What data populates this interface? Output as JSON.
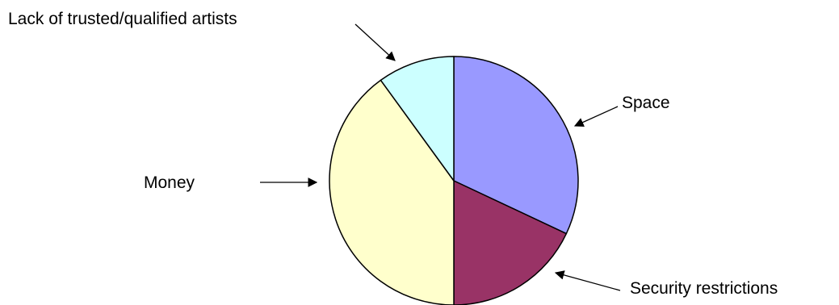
{
  "chart_data": {
    "type": "pie",
    "title": "",
    "slices": [
      {
        "label": "Space",
        "value": 32,
        "color": "#9999ff"
      },
      {
        "label": "Security restrictions",
        "value": 18,
        "color": "#993366"
      },
      {
        "label": "Money",
        "value": 40,
        "color": "#ffffcc"
      },
      {
        "label": "Lack of trusted/qualified artists",
        "value": 10,
        "color": "#ccffff"
      }
    ],
    "start": "12 o'clock",
    "direction": "clockwise",
    "legend": "none",
    "labels": "outside with arrows"
  }
}
